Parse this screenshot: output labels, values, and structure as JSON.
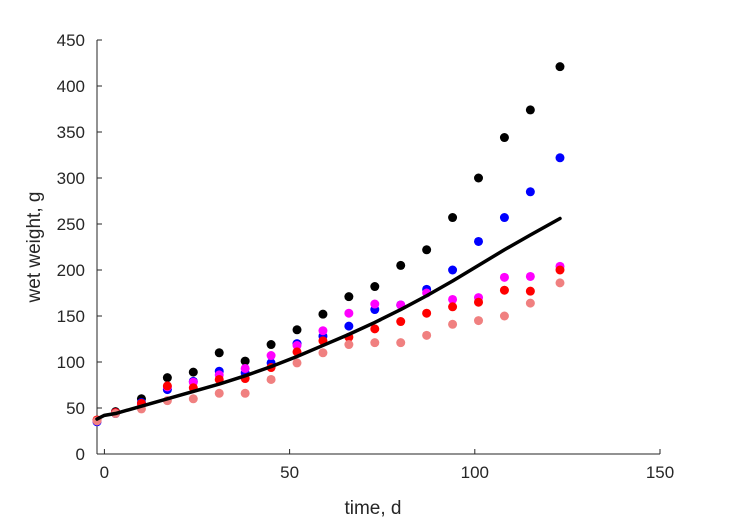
{
  "chart_data": {
    "type": "scatter",
    "title": "",
    "xlabel": "time, d",
    "ylabel": "wet weight, g",
    "xlim": [
      -2,
      150
    ],
    "ylim": [
      0,
      450
    ],
    "xticks": [
      0,
      50,
      100,
      150
    ],
    "yticks": [
      0,
      50,
      100,
      150,
      200,
      250,
      300,
      350,
      400,
      450
    ],
    "grid": false,
    "series": [
      {
        "kind": "scatter",
        "color": "#000000",
        "x": [
          -2,
          3,
          10,
          17,
          24,
          31,
          38,
          45,
          52,
          59,
          66,
          73,
          80,
          87,
          94,
          101,
          108,
          115,
          123
        ],
        "y": [
          36,
          46,
          60,
          83,
          89,
          110,
          101,
          119,
          135,
          152,
          171,
          182,
          205,
          222,
          257,
          300,
          344,
          374,
          421
        ]
      },
      {
        "kind": "scatter",
        "color": "#0000ff",
        "x": [
          -2,
          3,
          10,
          17,
          24,
          31,
          38,
          45,
          52,
          59,
          66,
          73,
          80,
          87,
          94,
          101,
          108,
          115,
          123
        ],
        "y": [
          35,
          44,
          56,
          70,
          79,
          90,
          88,
          99,
          120,
          128,
          139,
          157,
          162,
          179,
          200,
          231,
          257,
          285,
          322
        ]
      },
      {
        "kind": "scatter",
        "color": "#ff00ff",
        "x": [
          -2,
          3,
          10,
          17,
          24,
          31,
          38,
          45,
          52,
          59,
          66,
          73,
          80,
          87,
          94,
          101,
          108,
          115,
          123
        ],
        "y": [
          36,
          45,
          54,
          73,
          78,
          86,
          93,
          107,
          118,
          134,
          153,
          163,
          162,
          175,
          168,
          170,
          192,
          193,
          204
        ]
      },
      {
        "kind": "scatter",
        "color": "#ff0000",
        "x": [
          -2,
          3,
          10,
          17,
          24,
          31,
          38,
          45,
          52,
          59,
          66,
          73,
          80,
          87,
          94,
          101,
          108,
          115,
          123
        ],
        "y": [
          37,
          45,
          55,
          74,
          72,
          81,
          82,
          94,
          111,
          123,
          127,
          136,
          144,
          153,
          160,
          165,
          178,
          177,
          200
        ]
      },
      {
        "kind": "scatter",
        "color": "#f08080",
        "x": [
          -2,
          3,
          10,
          17,
          24,
          31,
          38,
          45,
          52,
          59,
          66,
          73,
          80,
          87,
          94,
          101,
          108,
          115,
          123
        ],
        "y": [
          36,
          44,
          49,
          58,
          60,
          66,
          66,
          81,
          99,
          110,
          119,
          121,
          121,
          129,
          141,
          145,
          150,
          164,
          186
        ]
      },
      {
        "kind": "line",
        "color": "#000000",
        "x": [
          -2,
          0,
          3,
          10,
          17,
          24,
          31,
          38,
          45,
          52,
          59,
          66,
          73,
          80,
          87,
          94,
          101,
          108,
          115,
          123
        ],
        "y": [
          38,
          42,
          44,
          52,
          60,
          68,
          76,
          85,
          95,
          106,
          118,
          130,
          143,
          157,
          172,
          188,
          205,
          222,
          238,
          256
        ]
      }
    ]
  }
}
